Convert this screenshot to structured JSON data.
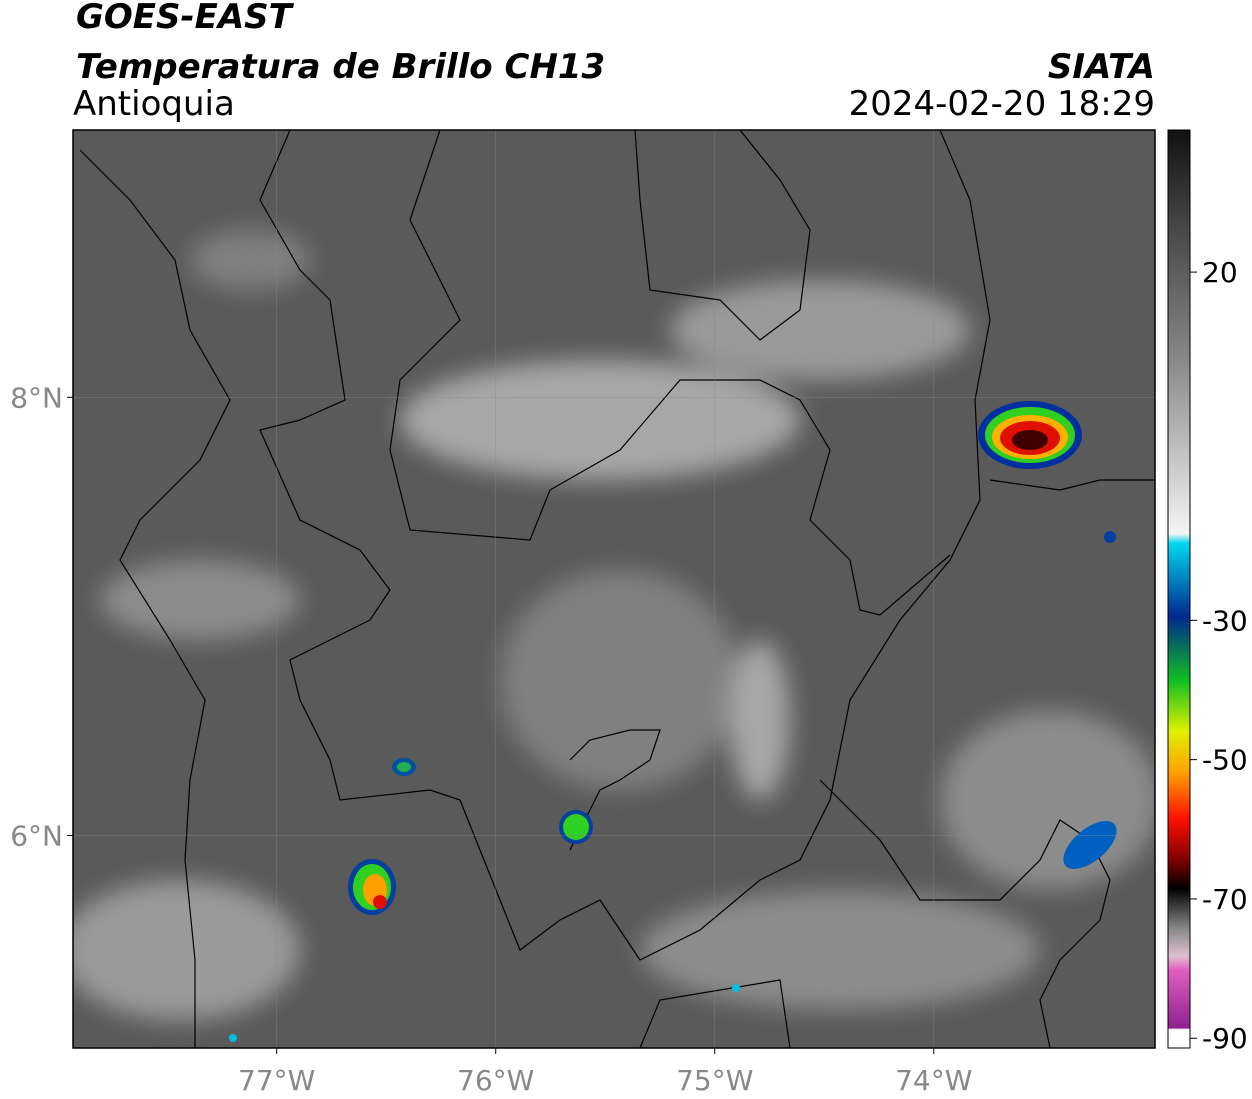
{
  "header": {
    "title": "GOES-EAST",
    "subtitle": "Temperatura de Brillo CH13",
    "region": "Antioquia",
    "source": "SIATA",
    "datetime": "2024-02-20 18:29"
  },
  "map": {
    "lon_range": [
      -77.93,
      -72.99
    ],
    "lat_range": [
      5.03,
      9.22
    ],
    "lon_ticks": [
      {
        "value": -77,
        "label": "77°W"
      },
      {
        "value": -76,
        "label": "76°W"
      },
      {
        "value": -75,
        "label": "75°W"
      },
      {
        "value": -74,
        "label": "74°W"
      }
    ],
    "lat_ticks": [
      {
        "value": 8,
        "label": "8°N"
      },
      {
        "value": 6,
        "label": "6°N"
      }
    ]
  },
  "colorbar": {
    "range": [
      -91.4,
      40.4
    ],
    "ticks": [
      20,
      -30,
      -50,
      -70,
      -90
    ]
  }
}
